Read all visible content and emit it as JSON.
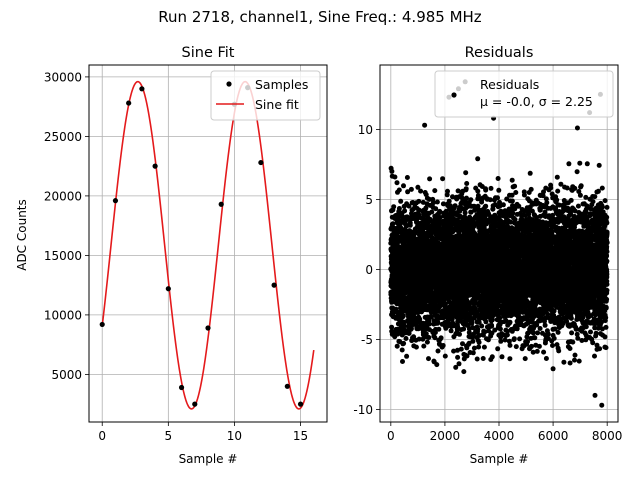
{
  "suptitle": "Run 2718, channel1, Sine Freq.: 4.985 MHz",
  "chart_data": [
    {
      "type": "scatter",
      "title": "Sine Fit",
      "xlabel": "Sample #",
      "ylabel": "ADC Counts",
      "xlim": [
        -1,
        17
      ],
      "ylim": [
        1000,
        31000
      ],
      "x_ticks": [
        0,
        5,
        10,
        15
      ],
      "y_ticks": [
        5000,
        10000,
        15000,
        20000,
        25000,
        30000
      ],
      "grid": true,
      "legend_position": "top-right",
      "series": [
        {
          "name": "Samples",
          "type": "scatter",
          "color": "#000000",
          "x": [
            0,
            1,
            2,
            3,
            4,
            5,
            6,
            7,
            8,
            9,
            10,
            11,
            12,
            13,
            14,
            15
          ],
          "y": [
            9200,
            19600,
            27800,
            29000,
            22500,
            12200,
            3900,
            2500,
            8900,
            19300,
            27700,
            29100,
            22800,
            12500,
            4000,
            2500
          ]
        },
        {
          "name": "Sine fit",
          "type": "line",
          "color": "#e41a1c",
          "amplitude": 13750,
          "offset": 15850,
          "frequency_per_sample": 0.1232,
          "phase": -0.514,
          "x_range": [
            0,
            16
          ]
        }
      ]
    },
    {
      "type": "scatter",
      "title": "Residuals",
      "xlabel": "Sample #",
      "ylabel": "",
      "xlim": [
        -400,
        8400
      ],
      "ylim": [
        -10.9,
        14.6
      ],
      "x_ticks": [
        0,
        2000,
        4000,
        6000,
        8000
      ],
      "y_ticks": [
        -10,
        -5,
        0,
        5,
        10
      ],
      "grid": true,
      "legend_position": "top-right",
      "series": [
        {
          "name": "Residuals",
          "legend_extra": "μ = -0.0, σ = 2.25",
          "type": "scatter",
          "color": "#000000",
          "n_points": 8000,
          "x_range": [
            0,
            8000
          ],
          "mean": 0.0,
          "std": 2.25,
          "outliers": [
            [
              2750,
              13.4
            ],
            [
              2500,
              12.9
            ],
            [
              7750,
              12.5
            ],
            [
              2150,
              12.3
            ],
            [
              7350,
              11.2
            ],
            [
              7800,
              -9.7
            ],
            [
              7550,
              -9.0
            ],
            [
              3800,
              10.8
            ],
            [
              1250,
              10.3
            ],
            [
              6900,
              10.1
            ],
            [
              1700,
              -6.8
            ],
            [
              2400,
              -7.0
            ],
            [
              6000,
              -7.1
            ],
            [
              2700,
              -7.3
            ]
          ]
        }
      ]
    }
  ]
}
